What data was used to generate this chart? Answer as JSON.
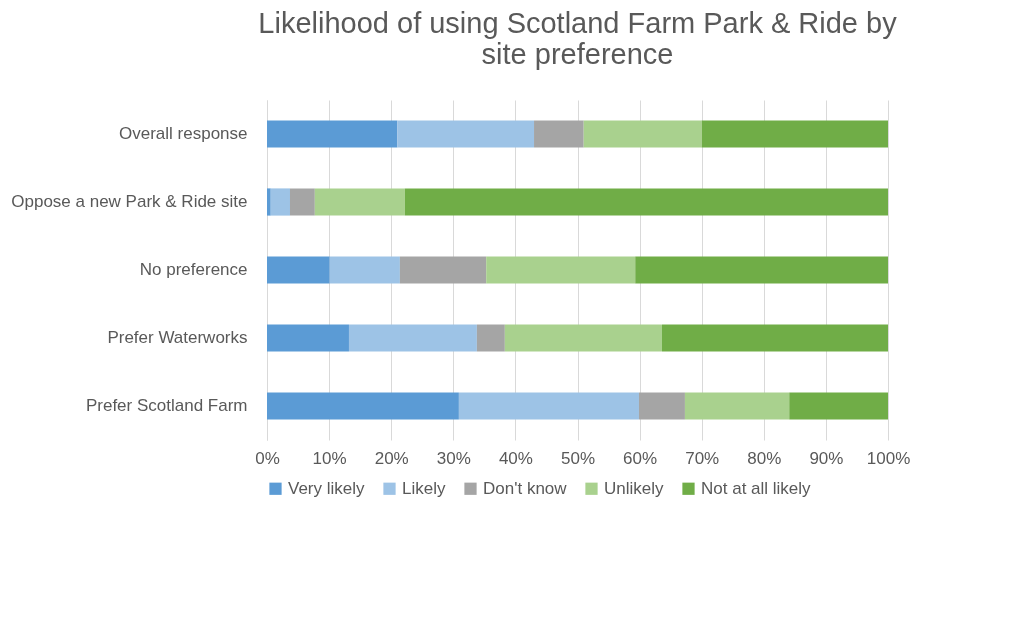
{
  "chart_data": {
    "type": "bar",
    "orientation": "horizontal",
    "stacked": true,
    "title": "Likelihood of using Scotland Farm Park & Ride by site preference",
    "categories": [
      "Overall response",
      "Oppose a new Park & Ride site",
      "No preference",
      "Prefer Waterworks",
      "Prefer Scotland Farm"
    ],
    "series": [
      {
        "name": "Very likely",
        "color": "#5b9bd5",
        "values": [
          21,
          0.6,
          10.1,
          13.2,
          30.9
        ]
      },
      {
        "name": "Likely",
        "color": "#9dc3e6",
        "values": [
          22,
          3.1,
          11.3,
          20.6,
          29
        ]
      },
      {
        "name": "Don't know",
        "color": "#a5a5a5",
        "values": [
          8,
          4,
          13.9,
          4.5,
          7.4
        ]
      },
      {
        "name": "Unlikely",
        "color": "#a9d18e",
        "values": [
          19,
          14.5,
          24,
          25.3,
          16.8
        ]
      },
      {
        "name": "Not at all likely",
        "color": "#70ad47",
        "values": [
          30,
          77.8,
          40.7,
          36.4,
          15.9
        ]
      }
    ],
    "xlim": [
      0,
      100
    ],
    "xticks": [
      {
        "value": 0,
        "label": "0%"
      },
      {
        "value": 10,
        "label": "10%"
      },
      {
        "value": 20,
        "label": "20%"
      },
      {
        "value": 30,
        "label": "30%"
      },
      {
        "value": 40,
        "label": "40%"
      },
      {
        "value": 50,
        "label": "50%"
      },
      {
        "value": 60,
        "label": "60%"
      },
      {
        "value": 70,
        "label": "70%"
      },
      {
        "value": 80,
        "label": "80%"
      },
      {
        "value": 90,
        "label": "90%"
      },
      {
        "value": 100,
        "label": "100%"
      }
    ],
    "grid": "x",
    "legend": "bottom"
  }
}
